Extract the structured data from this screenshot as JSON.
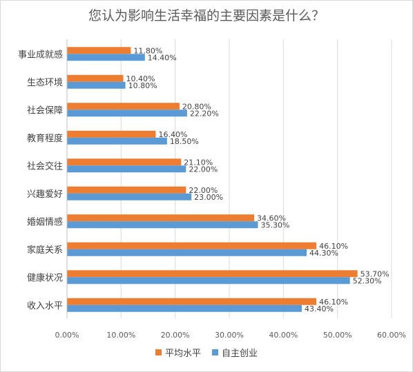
{
  "colors": {
    "series1": "#ED7D31",
    "series2": "#5B9BD5",
    "grid": "#D9D9D9"
  },
  "chart_data": {
    "type": "bar",
    "orientation": "horizontal",
    "title": "您认为影响生活幸福的主要因素是什么？",
    "categories": [
      "事业成就感",
      "生态环境",
      "社会保障",
      "教育程度",
      "社会交往",
      "兴趣爱好",
      "婚姻情感",
      "家庭关系",
      "健康状况",
      "收入水平"
    ],
    "series": [
      {
        "name": "平均水平",
        "values": [
          11.8,
          10.4,
          20.8,
          16.4,
          21.1,
          22.0,
          34.6,
          46.1,
          53.7,
          46.1
        ],
        "labels": [
          "11.80%",
          "10.40%",
          "20.80%",
          "16.40%",
          "21.10%",
          "22.00%",
          "34.60%",
          "46.10%",
          "53.70%",
          "46.10%"
        ]
      },
      {
        "name": "自主创业",
        "values": [
          14.4,
          10.8,
          22.2,
          18.5,
          22.0,
          23.0,
          35.3,
          44.3,
          52.3,
          43.4
        ],
        "labels": [
          "14.40%",
          "10.80%",
          "22.20%",
          "18.50%",
          "22.00%",
          "23.00%",
          "35.30%",
          "44.30%",
          "52.30%",
          "43.40%"
        ]
      }
    ],
    "xlim": [
      0,
      60
    ],
    "xticks": [
      "0.00%",
      "10.00%",
      "20.00%",
      "30.00%",
      "40.00%",
      "50.00%",
      "60.00%"
    ],
    "grid": true,
    "legend_position": "bottom"
  }
}
